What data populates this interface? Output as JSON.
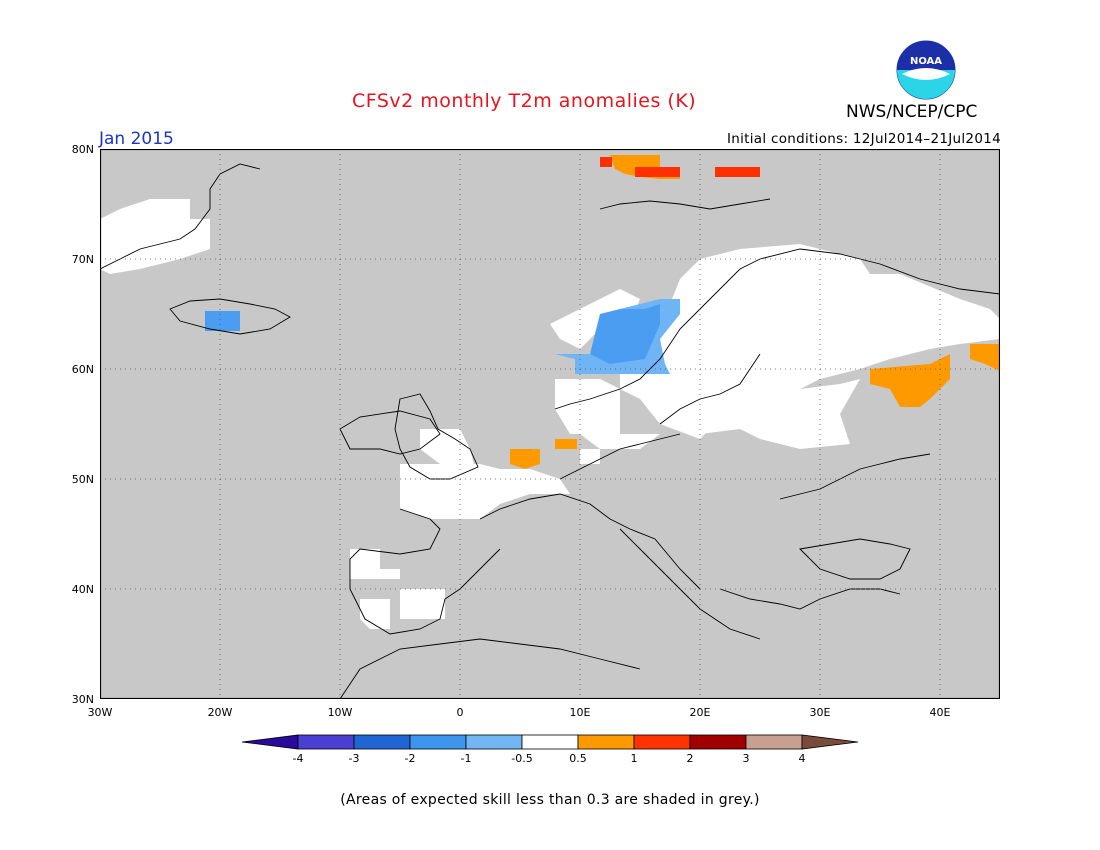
{
  "header": {
    "title": "CFSv2 monthly T2m anomalies (K)",
    "period": "Jan 2015",
    "initial_conditions": "Initial conditions: 12Jul2014–21Jul2014",
    "agency": "NWS/NCEP/CPC",
    "logo_text": "NOAA"
  },
  "map": {
    "lat_labels": [
      "80N",
      "70N",
      "60N",
      "50N",
      "40N",
      "30N"
    ],
    "lon_labels": [
      "30W",
      "20W",
      "10W",
      "0",
      "10E",
      "20E",
      "30E",
      "40E"
    ],
    "lat_range": [
      30,
      80
    ],
    "lon_range": [
      -30,
      45
    ],
    "colors": {
      "grey": "#c8c8c8",
      "white": "#ffffff",
      "orange": "#ff9900",
      "red": "#ff3000",
      "blue": "#4a9df0",
      "lightblue": "#6fb4f5"
    }
  },
  "legend": {
    "labels": [
      "-4",
      "-3",
      "-2",
      "-1",
      "-0.5",
      "0.5",
      "1",
      "2",
      "3",
      "4"
    ],
    "colors": [
      "#2a0a9a",
      "#4b3ed2",
      "#1f66d4",
      "#3e95ee",
      "#72b6f3",
      "#ffffff",
      "#ff9900",
      "#ff3300",
      "#a00000",
      "#c8a090",
      "#7a4a3a"
    ]
  },
  "footnote": "(Areas of expected skill less than 0.3 are shaded in grey.)"
}
